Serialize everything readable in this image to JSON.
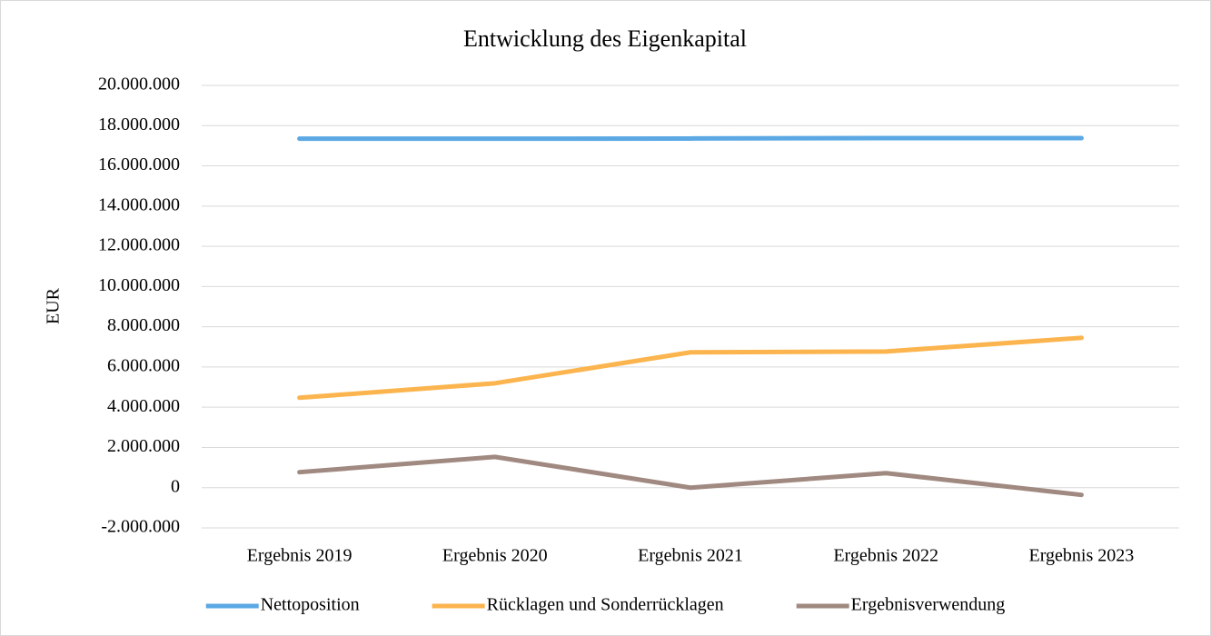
{
  "chart_data": {
    "type": "line",
    "title": "Entwicklung des Eigenkapital",
    "y_label": "EUR",
    "categories": [
      "Ergebnis 2019",
      "Ergebnis 2020",
      "Ergebnis 2021",
      "Ergebnis 2022",
      "Ergebnis 2023"
    ],
    "series": [
      {
        "name": "Nettoposition",
        "color": "#5ba8e4",
        "values": [
          17350000,
          17350000,
          17360000,
          17380000,
          17380000
        ]
      },
      {
        "name": "Rücklagen und Sonderrücklagen",
        "color": "#fbb44e",
        "values": [
          4470000,
          5190000,
          6730000,
          6770000,
          7450000
        ]
      },
      {
        "name": "Ergebnisverwendung",
        "color": "#a08980",
        "values": [
          770000,
          1530000,
          0,
          720000,
          -360000
        ]
      }
    ],
    "ylim": [
      -2000000,
      20000000
    ],
    "yticks": [
      {
        "value": -2000000,
        "label": "-2.000.000"
      },
      0,
      {
        "value": 2000000,
        "label": "2.000.000"
      },
      {
        "value": 4000000,
        "label": "4.000.000"
      },
      {
        "value": 6000000,
        "label": "6.000.000"
      },
      {
        "value": 8000000,
        "label": "8.000.000"
      },
      {
        "value": 10000000,
        "label": "10.000.000"
      },
      {
        "value": 12000000,
        "label": "12.000.000"
      },
      {
        "value": 14000000,
        "label": "14.000.000"
      },
      {
        "value": 16000000,
        "label": "16.000.000"
      },
      {
        "value": 18000000,
        "label": "18.000.000"
      },
      {
        "value": 20000000,
        "label": "20.000.000"
      }
    ],
    "grid": true,
    "legend": "bottom"
  }
}
